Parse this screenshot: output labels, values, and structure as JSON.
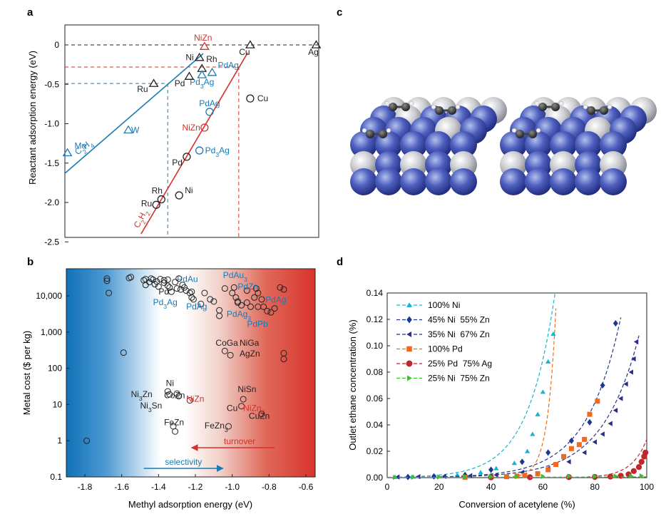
{
  "colors": {
    "black": "#222222",
    "red": "#d6302b",
    "blue": "#1a7ab5",
    "cyan": "#17b3d1",
    "darkblue": "#1b3a8f",
    "navy": "#2a2f86",
    "orange": "#ef6a1e",
    "darkred": "#c0272d",
    "green": "#3cbf2e"
  },
  "panel_labels": [
    "a",
    "b",
    "c",
    "d"
  ],
  "chart_data": [
    {
      "panel": "a",
      "type": "scatter",
      "ylabel": "Reactant adsorption energy (eV)",
      "ylim": [
        -2.5,
        0.2
      ],
      "yticks": [
        "0",
        "-0.5",
        "-1.0",
        "-1.5",
        "-2.0",
        "-2.5"
      ],
      "line_labels": [
        "C2H4",
        "C2H2"
      ],
      "points": [
        {
          "label": "NiZn",
          "marker": "triangle",
          "color": "red",
          "x": 0.55,
          "y": -0.02
        },
        {
          "label": "Cu",
          "marker": "triangle",
          "color": "black",
          "x": 0.73,
          "y": 0.0
        },
        {
          "label": "Ag",
          "marker": "triangle",
          "color": "black",
          "x": 0.99,
          "y": 0.0
        },
        {
          "label": "Ni",
          "marker": "triangle",
          "color": "black",
          "x": 0.53,
          "y": -0.16
        },
        {
          "label": "Rh",
          "marker": "triangle",
          "color": "black",
          "x": 0.54,
          "y": -0.3
        },
        {
          "label": "PdAg",
          "marker": "triangle",
          "color": "blue",
          "x": 0.58,
          "y": -0.35
        },
        {
          "label": "Pd3Ag",
          "marker": "triangle",
          "color": "blue",
          "x": 0.54,
          "y": -0.38
        },
        {
          "label": "Pd",
          "marker": "triangle",
          "color": "black",
          "x": 0.49,
          "y": -0.4
        },
        {
          "label": "Ru",
          "marker": "triangle",
          "color": "black",
          "x": 0.35,
          "y": -0.49
        },
        {
          "label": "W",
          "marker": "triangle",
          "color": "blue",
          "x": 0.25,
          "y": -1.08
        },
        {
          "label": "Mo",
          "marker": "triangle",
          "color": "blue",
          "x": 0.01,
          "y": -1.37
        },
        {
          "label": "Cu",
          "marker": "circle",
          "color": "black",
          "x": 0.73,
          "y": -0.68
        },
        {
          "label": "PdAg",
          "marker": "circle",
          "color": "blue",
          "x": 0.57,
          "y": -0.85
        },
        {
          "label": "NiZn",
          "marker": "circle",
          "color": "red",
          "x": 0.55,
          "y": -1.05
        },
        {
          "label": "Pd3Ag",
          "marker": "circle",
          "color": "blue",
          "x": 0.53,
          "y": -1.34
        },
        {
          "label": "Pd",
          "marker": "circle",
          "color": "black",
          "x": 0.48,
          "y": -1.42
        },
        {
          "label": "Ni",
          "marker": "circle",
          "color": "black",
          "x": 0.45,
          "y": -1.91
        },
        {
          "label": "Rh",
          "marker": "circle",
          "color": "black",
          "x": 0.38,
          "y": -1.96
        },
        {
          "label": "Ru",
          "marker": "circle",
          "color": "black",
          "x": 0.36,
          "y": -2.03
        }
      ]
    },
    {
      "panel": "b",
      "type": "scatter",
      "xlabel": "Methyl adsorption energy (eV)",
      "ylabel": "Metal cost ($ per kg)",
      "xlim": [
        -1.9,
        -0.55
      ],
      "xticks": [
        "-1.8",
        "-1.6",
        "-1.4",
        "-1.2",
        "-1.0",
        "-0.8",
        "-0.6"
      ],
      "yscale": "log",
      "ylim": [
        0.1,
        100000
      ],
      "yticks": [
        "0.1",
        "1",
        "10",
        "100",
        "1,000",
        "10,000"
      ],
      "arrows": [
        "selectivity",
        "turnover"
      ],
      "labels": [
        {
          "text": "PdAu",
          "color": "blue"
        },
        {
          "text": "PdAu3",
          "color": "blue"
        },
        {
          "text": "PdZn",
          "color": "blue"
        },
        {
          "text": "PdAg",
          "color": "blue"
        },
        {
          "text": "PdAg3",
          "color": "blue"
        },
        {
          "text": "PdPb",
          "color": "blue"
        },
        {
          "text": "Pd",
          "color": "black"
        },
        {
          "text": "Pd3Ag",
          "color": "blue"
        },
        {
          "text": "PdAg",
          "color": "blue"
        },
        {
          "text": "CoGa",
          "color": "black"
        },
        {
          "text": "NiGa",
          "color": "black"
        },
        {
          "text": "AgZn",
          "color": "black"
        },
        {
          "text": "Ni",
          "color": "black"
        },
        {
          "text": "Ni3Zn",
          "color": "black"
        },
        {
          "text": "CoZn",
          "color": "black"
        },
        {
          "text": "NiZn",
          "color": "red"
        },
        {
          "text": "Ni3Sn",
          "color": "black"
        },
        {
          "text": "NiSn",
          "color": "black"
        },
        {
          "text": "Cu",
          "color": "black"
        },
        {
          "text": "NiZn3",
          "color": "red"
        },
        {
          "text": "CuZn",
          "color": "black"
        },
        {
          "text": "FeZn",
          "color": "black"
        },
        {
          "text": "FeZn3",
          "color": "black"
        }
      ],
      "points": [
        [
          -1.68,
          30000
        ],
        [
          -1.68,
          26000
        ],
        [
          -1.67,
          12000
        ],
        [
          -1.56,
          31000
        ],
        [
          -1.55,
          33000
        ],
        [
          -1.48,
          27000
        ],
        [
          -1.47,
          29000
        ],
        [
          -1.47,
          20000
        ],
        [
          -1.45,
          24000
        ],
        [
          -1.44,
          30000
        ],
        [
          -1.43,
          28000
        ],
        [
          -1.42,
          21000
        ],
        [
          -1.41,
          25000
        ],
        [
          -1.39,
          29000
        ],
        [
          -1.37,
          27000
        ],
        [
          -1.35,
          28000
        ],
        [
          -1.33,
          13000
        ],
        [
          -1.31,
          24000
        ],
        [
          -1.3,
          16000
        ],
        [
          -1.29,
          30000
        ],
        [
          -1.27,
          20000
        ],
        [
          -1.26,
          17000
        ],
        [
          -1.25,
          14000
        ],
        [
          -1.23,
          12000
        ],
        [
          -1.22,
          9000
        ],
        [
          -1.21,
          8000
        ],
        [
          -1.17,
          6000
        ],
        [
          -1.15,
          12000
        ],
        [
          -1.12,
          8000
        ],
        [
          -1.1,
          7000
        ],
        [
          -1.07,
          4000
        ],
        [
          -1.04,
          16000
        ],
        [
          -1.0,
          12000
        ],
        [
          -0.98,
          9000
        ],
        [
          -0.97,
          6500
        ],
        [
          -0.95,
          5500
        ],
        [
          -0.9,
          5000
        ],
        [
          -0.88,
          9000
        ],
        [
          -0.87,
          16000
        ],
        [
          -0.86,
          12000
        ],
        [
          -0.84,
          8000
        ],
        [
          -0.83,
          5000
        ],
        [
          -0.81,
          3800
        ],
        [
          -0.79,
          3500
        ],
        [
          -0.77,
          4500
        ],
        [
          -0.74,
          17000
        ],
        [
          -0.72,
          15000
        ],
        [
          -0.92,
          6500
        ],
        [
          -0.99,
          17000
        ],
        [
          -1.28,
          15000
        ],
        [
          -1.07,
          2800
        ],
        [
          -1.59,
          270
        ],
        [
          -1.04,
          300
        ],
        [
          -1.01,
          230
        ],
        [
          -0.72,
          260
        ],
        [
          -0.72,
          180
        ],
        [
          -1.37,
          23000
        ],
        [
          -1.35,
          19000
        ],
        [
          -1.34,
          17000
        ],
        [
          -1.4,
          18000
        ],
        [
          -0.92,
          14000
        ],
        [
          -0.97,
          7000
        ],
        [
          -1.22,
          13000
        ],
        [
          -0.86,
          5000
        ],
        [
          -1.35,
          23
        ],
        [
          -1.3,
          20
        ],
        [
          -1.34,
          19
        ],
        [
          -1.29,
          17
        ],
        [
          -1.23,
          13
        ],
        [
          -0.94,
          14
        ],
        [
          -0.95,
          9
        ],
        [
          -1.32,
          2.5
        ],
        [
          -1.31,
          1.8
        ],
        [
          -1.02,
          2.5
        ],
        [
          -1.79,
          1.0
        ],
        [
          -0.84,
          5.5
        ]
      ]
    },
    {
      "panel": "c",
      "type": "other",
      "description_none": ""
    },
    {
      "panel": "d",
      "type": "line",
      "xlabel": "Conversion of acetylene (%)",
      "ylabel": "Outlet ethane concentration (%)",
      "xlim": [
        0,
        100
      ],
      "ylim": [
        0,
        0.14
      ],
      "xticks": [
        "0",
        "20",
        "40",
        "60",
        "80",
        "100"
      ],
      "yticks": [
        "0.00",
        "0.02",
        "0.04",
        "0.06",
        "0.08",
        "0.10",
        "0.12",
        "0.14"
      ],
      "series": [
        {
          "name": "100% Ni",
          "color": "cyan",
          "marker": "triangle-up",
          "points": [
            [
              3,
              0.0005
            ],
            [
              10,
              0.0007
            ],
            [
              18,
              0.001
            ],
            [
              27,
              0.002
            ],
            [
              36,
              0.004
            ],
            [
              42,
              0.007
            ],
            [
              49,
              0.011
            ],
            [
              54,
              0.02
            ],
            [
              56,
              0.033
            ],
            [
              58,
              0.048
            ],
            [
              60,
              0.065
            ],
            [
              62,
              0.088
            ],
            [
              64,
              0.109
            ]
          ]
        },
        {
          "name": "45% Ni  55% Zn",
          "color": "darkblue",
          "marker": "diamond",
          "points": [
            [
              8,
              0.0005
            ],
            [
              18,
              0.001
            ],
            [
              30,
              0.002
            ],
            [
              40,
              0.006
            ],
            [
              52,
              0.012
            ],
            [
              62,
              0.019
            ],
            [
              71,
              0.028
            ],
            [
              78,
              0.042
            ],
            [
              83,
              0.07
            ],
            [
              88,
              0.117
            ]
          ]
        },
        {
          "name": "35% Ni  67% Zn",
          "color": "navy",
          "marker": "triangle-left",
          "points": [
            [
              4,
              0.0005
            ],
            [
              12,
              0.0008
            ],
            [
              22,
              0.001
            ],
            [
              32,
              0.0015
            ],
            [
              42,
              0.002
            ],
            [
              52,
              0.004
            ],
            [
              62,
              0.007
            ],
            [
              70,
              0.012
            ],
            [
              76,
              0.019
            ],
            [
              80,
              0.027
            ],
            [
              83,
              0.033
            ],
            [
              86,
              0.041
            ],
            [
              88,
              0.051
            ],
            [
              90,
              0.06
            ],
            [
              92,
              0.071
            ],
            [
              94,
              0.08
            ],
            [
              95,
              0.09
            ],
            [
              96,
              0.103
            ]
          ]
        },
        {
          "name": "100% Pd",
          "color": "orange",
          "marker": "square",
          "points": [
            [
              30,
              0.0003
            ],
            [
              40,
              0.0005
            ],
            [
              46,
              0.0007
            ],
            [
              50,
              0.0012
            ],
            [
              53,
              0.0018
            ],
            [
              58,
              0.003
            ],
            [
              62,
              0.006
            ],
            [
              65,
              0.01
            ],
            [
              68,
              0.016
            ],
            [
              71,
              0.022
            ],
            [
              74,
              0.025
            ],
            [
              76,
              0.029
            ],
            [
              78,
              0.048
            ],
            [
              81,
              0.058
            ]
          ]
        },
        {
          "name": "25% Pd  75% Ag",
          "color": "darkred",
          "marker": "circle",
          "points": [
            [
              40,
              0.0002
            ],
            [
              55,
              0.0003
            ],
            [
              70,
              0.0004
            ],
            [
              80,
              0.0005
            ],
            [
              86,
              0.0008
            ],
            [
              90,
              0.0014
            ],
            [
              93,
              0.0025
            ],
            [
              95,
              0.005
            ],
            [
              97,
              0.008
            ],
            [
              98,
              0.012
            ],
            [
              99,
              0.016
            ],
            [
              99.5,
              0.019
            ]
          ]
        },
        {
          "name": "25% Ni  75% Zn",
          "color": "green",
          "marker": "triangle-right",
          "points": [
            [
              3,
              0.0002
            ],
            [
              10,
              0.0003
            ],
            [
              20,
              0.0005
            ],
            [
              30,
              0.0006
            ],
            [
              40,
              0.0007
            ],
            [
              50,
              0.0008
            ],
            [
              60,
              0.0009
            ],
            [
              70,
              0.001
            ],
            [
              80,
              0.001
            ],
            [
              88,
              0.0012
            ],
            [
              94,
              0.0012
            ],
            [
              98,
              0.0013
            ]
          ]
        }
      ]
    }
  ]
}
